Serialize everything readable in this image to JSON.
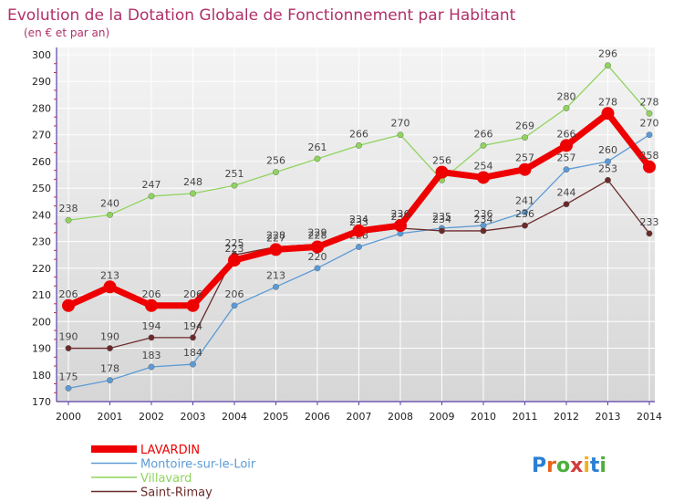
{
  "title": "Evolution de la Dotation Globale de Fonctionnement par Habitant",
  "subtitle": "(en € et par an)",
  "logo_text": "Proxiti",
  "colors": {
    "title": "#b0306a",
    "axis": "#5b3fa6",
    "tick_label": "#222222",
    "value_label": "#444444",
    "grid": "#ffffff",
    "plot_bg_top": "#f4f4f4",
    "plot_bg_bottom": "#d6d6d6"
  },
  "chart_data": {
    "type": "line",
    "x": [
      "2000",
      "2001",
      "2002",
      "2003",
      "2004",
      "2005",
      "2006",
      "2007",
      "2008",
      "2009",
      "2010",
      "2011",
      "2012",
      "2013",
      "2014"
    ],
    "ylim": [
      170,
      300
    ],
    "yticks": [
      170,
      180,
      190,
      200,
      210,
      220,
      230,
      240,
      250,
      260,
      270,
      280,
      290,
      300
    ],
    "grid": true,
    "legend_position": "bottom-left",
    "series": [
      {
        "name": "Villavard",
        "color": "#8fd45e",
        "values": [
          238,
          240,
          247,
          248,
          251,
          256,
          261,
          266,
          270,
          253,
          266,
          269,
          280,
          296,
          278
        ],
        "labels": [
          "238",
          "240",
          "247",
          "248",
          "251",
          "256",
          "261",
          "266",
          "270",
          "",
          "266",
          "269",
          "280",
          "296",
          "278"
        ]
      },
      {
        "name": "Montoire-sur-le-Loir",
        "color": "#5b9bd5",
        "values": [
          175,
          178,
          183,
          184,
          206,
          213,
          220,
          228,
          233,
          235,
          236,
          241,
          257,
          260,
          270
        ],
        "labels": [
          "175",
          "178",
          "183",
          "184",
          "206",
          "213",
          "220",
          "228",
          "",
          "235",
          "236",
          "241",
          "257",
          "260",
          "270"
        ]
      },
      {
        "name": "Saint-Rimay",
        "color": "#6b2a2a",
        "values": [
          190,
          190,
          194,
          194,
          225,
          228,
          229,
          233,
          235,
          234,
          234,
          236,
          244,
          253,
          233
        ],
        "labels": [
          "190",
          "190",
          "194",
          "194",
          "225",
          "228",
          "229",
          "233",
          "235",
          "234",
          "234",
          "236",
          "244",
          "253",
          "233"
        ]
      },
      {
        "name": "LAVARDIN",
        "color": "#ee0000",
        "values": [
          206,
          213,
          206,
          206,
          223,
          227,
          228,
          234,
          236,
          256,
          254,
          257,
          266,
          278,
          258
        ],
        "labels": [
          "206",
          "213",
          "206",
          "206",
          "223",
          "227",
          "228",
          "234",
          "236",
          "256",
          "254",
          "257",
          "266",
          "278",
          "258"
        ]
      }
    ],
    "legend_order": [
      "LAVARDIN",
      "Montoire-sur-le-Loir",
      "Villavard",
      "Saint-Rimay"
    ]
  }
}
